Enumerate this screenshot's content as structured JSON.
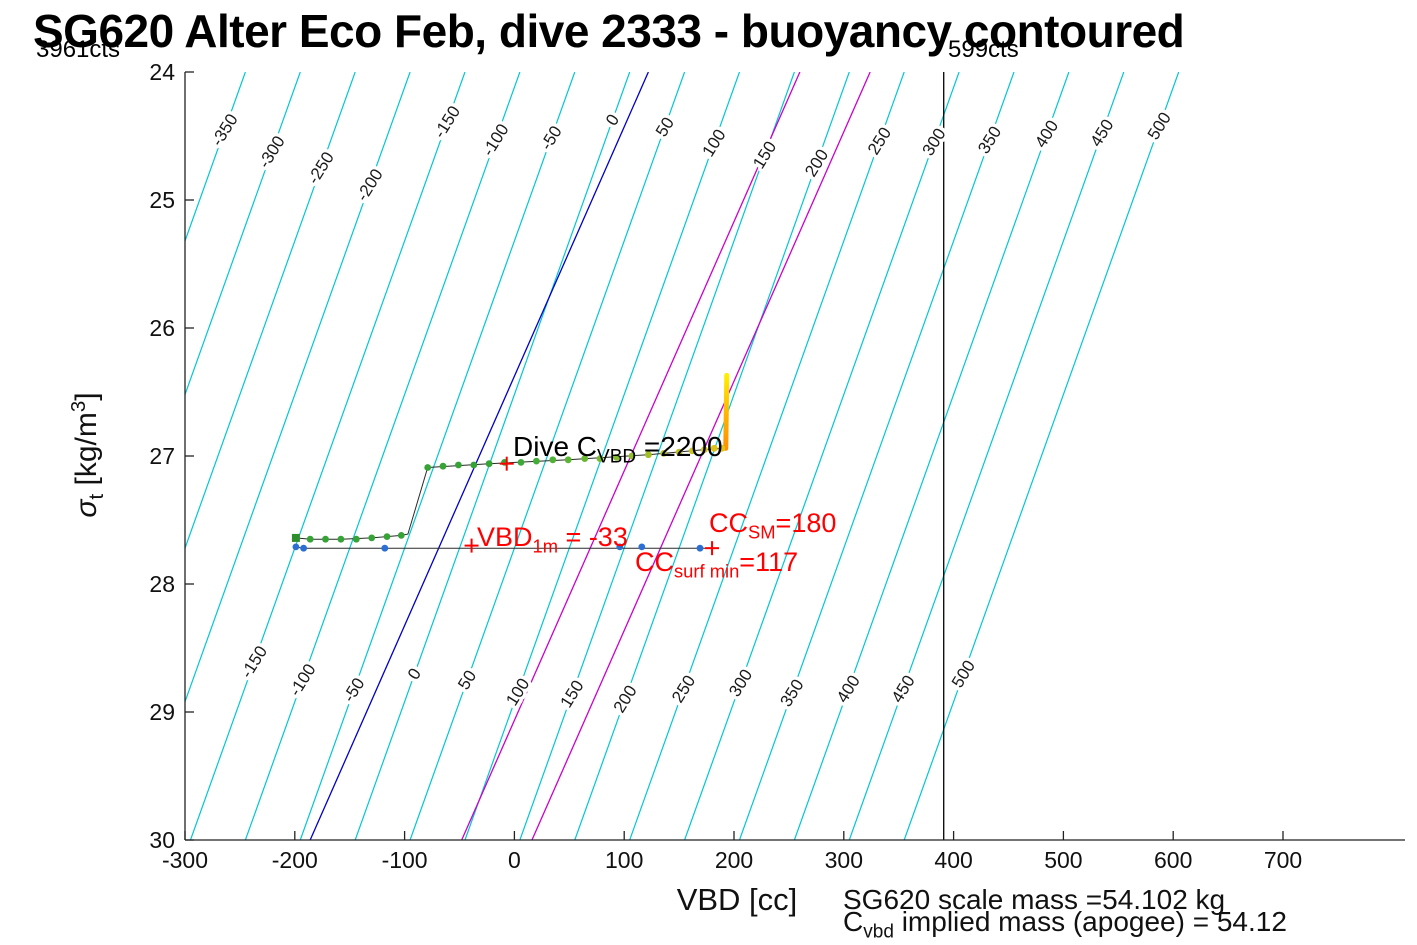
{
  "title": "SG620 Alter Eco Feb, dive 2333 - buoyancy contoured",
  "corner_labels": {
    "left": "3961cts",
    "right": "599cts"
  },
  "footer": {
    "line1": "SG620 scale mass =54.102 kg"
  },
  "chart_data": {
    "type": "line",
    "subtype": "buoyancy-contour-overlay",
    "title": "SG620 Alter Eco Feb, dive 2333 - buoyancy contoured",
    "xlabel": "VBD [cc]",
    "ylabel": "sigma_t [kg/m^3]",
    "x_axis_range": [
      -300,
      810
    ],
    "y_axis_top": 24,
    "y_axis_bottom": 30,
    "y_axis_reversed": true,
    "x_ticks": [
      -300,
      -200,
      -100,
      0,
      100,
      200,
      300,
      400,
      500,
      600,
      700
    ],
    "y_ticks": [
      24,
      25,
      26,
      27,
      28,
      29,
      30
    ],
    "contours": {
      "levels": [
        -350,
        -300,
        -250,
        -200,
        -150,
        -100,
        -50,
        0,
        50,
        100,
        150,
        200,
        250,
        300,
        350,
        400,
        450,
        500
      ],
      "color": "#00c8d2",
      "vbd_at_sigma24_offset": 105,
      "vbd_at_sigma30_offset": -145,
      "top_labels": [
        [
          -350,
          130
        ],
        [
          -300,
          152
        ],
        [
          -250,
          168
        ],
        [
          -200,
          185
        ],
        [
          -150,
          122
        ],
        [
          -100,
          140
        ],
        [
          -50,
          138
        ],
        [
          0,
          120
        ],
        [
          50,
          127
        ],
        [
          100,
          143
        ],
        [
          150,
          155
        ],
        [
          200,
          163
        ],
        [
          250,
          141
        ],
        [
          300,
          142
        ],
        [
          350,
          140
        ],
        [
          400,
          134
        ],
        [
          450,
          133
        ],
        [
          500,
          126
        ]
      ],
      "bottom_labels": [
        [
          -150,
          662
        ],
        [
          -100,
          680
        ],
        [
          -50,
          690
        ],
        [
          0,
          674
        ],
        [
          50,
          680
        ],
        [
          100,
          692
        ],
        [
          150,
          694
        ],
        [
          200,
          699
        ],
        [
          250,
          689
        ],
        [
          300,
          683
        ],
        [
          350,
          693
        ],
        [
          400,
          689
        ],
        [
          450,
          689
        ],
        [
          500,
          674
        ]
      ]
    },
    "reference_lines": [
      {
        "id": "neutral-buoyancy-line",
        "color": "#0000cc",
        "sigma24_vbd": 122,
        "sigma30_vbd": -186
      },
      {
        "id": "cc-surf-min-line",
        "value": 117,
        "color": "#cc00cc",
        "sigma24_vbd": 260,
        "sigma30_vbd": -48
      },
      {
        "id": "cc-sm-line",
        "value": 180,
        "color": "#cc00cc",
        "sigma24_vbd": 324,
        "sigma30_vbd": 16
      }
    ],
    "vertical_line": {
      "id": "counts-599-line",
      "x_vbd": 391,
      "color": "#000000",
      "label": "599cts"
    },
    "series": [
      {
        "id": "dive-trace",
        "line_color": "#2a2a2a",
        "line": [
          [
            -199,
            27.64
          ],
          [
            -186,
            27.65
          ],
          [
            -158,
            27.65
          ],
          [
            -130,
            27.64
          ],
          [
            -103,
            27.62
          ],
          [
            -97,
            27.61
          ],
          [
            -79,
            27.09
          ],
          [
            -23,
            27.06
          ],
          [
            49,
            27.03
          ],
          [
            122,
            26.99
          ],
          [
            173,
            26.95
          ],
          [
            192,
            26.94
          ]
        ],
        "start_square": {
          "x": -199,
          "y": 27.64,
          "color": "#2e8e2e"
        },
        "surface_spike": {
          "x": 192.5,
          "sigma_from": 26.94,
          "sigma_to": 26.37,
          "color_top": "#ffee00",
          "color_mid": "#ffb300",
          "color_bottom": "#ff9000"
        },
        "dots": [
          [
            -186,
            27.65,
            "#36a336"
          ],
          [
            -172,
            27.65,
            "#36a336"
          ],
          [
            -158,
            27.65,
            "#36a336"
          ],
          [
            -144,
            27.65,
            "#36a336"
          ],
          [
            -130,
            27.64,
            "#36a336"
          ],
          [
            -116,
            27.63,
            "#36a336"
          ],
          [
            -103,
            27.62,
            "#36a336"
          ],
          [
            -79,
            27.09,
            "#36a336"
          ],
          [
            -65,
            27.08,
            "#36a336"
          ],
          [
            -51,
            27.07,
            "#36a336"
          ],
          [
            -37,
            27.07,
            "#36a336"
          ],
          [
            -23,
            27.06,
            "#36a336"
          ],
          [
            -9,
            27.05,
            "#36a336"
          ],
          [
            6,
            27.05,
            "#3ca93a"
          ],
          [
            20,
            27.04,
            "#44ad38"
          ],
          [
            35,
            27.03,
            "#4fb136"
          ],
          [
            49,
            27.03,
            "#5bb434"
          ],
          [
            64,
            27.02,
            "#68b732"
          ],
          [
            78,
            27.02,
            "#76ba30"
          ],
          [
            93,
            27.01,
            "#85bd2e"
          ],
          [
            107,
            27.0,
            "#93be2b"
          ],
          [
            122,
            26.99,
            "#a3bf28"
          ],
          [
            136,
            26.98,
            "#b1c026"
          ],
          [
            150,
            26.97,
            "#bfc123"
          ],
          [
            162,
            26.96,
            "#cac21f"
          ],
          [
            173,
            26.95,
            "#d4c31c"
          ],
          [
            182,
            26.94,
            "#dcc419"
          ],
          [
            189,
            26.94,
            "#e2c416"
          ]
        ]
      },
      {
        "id": "surface-reference-trace",
        "line_color": "#2a2a2a",
        "line": [
          [
            -199,
            27.71
          ],
          [
            -193,
            27.72
          ],
          [
            180,
            27.72
          ]
        ],
        "dots": [
          [
            -199,
            27.71,
            "#2b6fd4"
          ],
          [
            -192,
            27.72,
            "#2b6fd4"
          ],
          [
            -118,
            27.72,
            "#2b6fd4"
          ],
          [
            96,
            27.71,
            "#2b6fd4"
          ],
          [
            116,
            27.71,
            "#2b6fd4"
          ],
          [
            169,
            27.72,
            "#2b6fd4"
          ]
        ]
      }
    ],
    "plus_markers": {
      "color": "#ff0000",
      "points": [
        [
          -39,
          27.7
        ],
        [
          180,
          27.72
        ],
        [
          -7,
          27.06
        ]
      ]
    },
    "key_values": {
      "dive_c_vbd": 2200,
      "vbd_1m": -33,
      "cc_sm": 180,
      "cc_surf_min": 117,
      "left_counts": "3961cts",
      "right_counts": "599cts",
      "scale_mass_kg": 54.102,
      "implied_mass_apogee_kg": 54.12
    },
    "annotations": [
      {
        "id": "dive-cvbd-annotation",
        "color": "#000000",
        "size": 28,
        "parts": [
          {
            "t": "Dive C"
          },
          {
            "t": "VBD",
            "sub": true
          },
          {
            "t": " =2200"
          }
        ]
      },
      {
        "id": "vbd-1m-annotation",
        "color": "#ff0000",
        "size": 27,
        "parts": [
          {
            "t": "VBD"
          },
          {
            "t": "1m",
            "sub": true
          },
          {
            "t": " = -33"
          }
        ]
      },
      {
        "id": "cc-sm-annotation",
        "color": "#ff0000",
        "size": 27,
        "parts": [
          {
            "t": "CC"
          },
          {
            "t": "SM",
            "sub": true
          },
          {
            "t": "=180"
          }
        ]
      },
      {
        "id": "cc-surf-min-annotation",
        "color": "#ff0000",
        "size": 27,
        "parts": [
          {
            "t": "CC"
          },
          {
            "t": "surf min",
            "sub": true
          },
          {
            "t": "=117"
          }
        ]
      },
      {
        "id": "y-axis-label",
        "cls": "ylabel",
        "color": "#111111",
        "size": 30,
        "parts": [
          {
            "t": "σ",
            "italic": true
          },
          {
            "t": "t",
            "sub": true
          },
          {
            "t": " [kg/m"
          },
          {
            "t": "3",
            "sup": true
          },
          {
            "t": "]"
          }
        ]
      },
      {
        "id": "footer-implied-mass",
        "color": "#111111",
        "size": 28,
        "parts": [
          {
            "t": "C"
          },
          {
            "t": "vbd",
            "sub": true
          },
          {
            "t": " implied mass (apogee) = 54.12"
          }
        ]
      }
    ]
  }
}
